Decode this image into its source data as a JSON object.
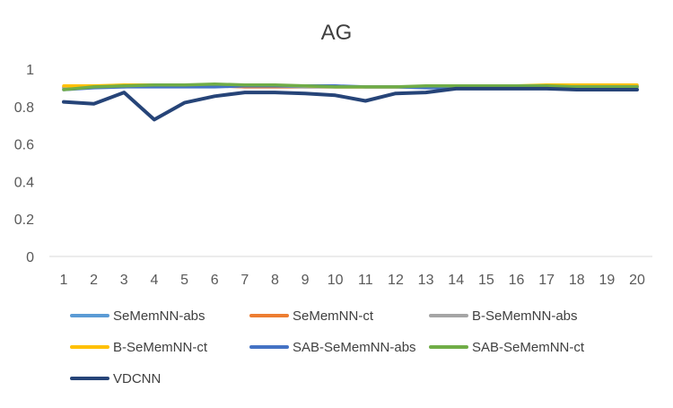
{
  "chart_data": {
    "type": "line",
    "title": "AG",
    "xlabel": "",
    "ylabel": "",
    "categories": [
      "1",
      "2",
      "3",
      "4",
      "5",
      "6",
      "7",
      "8",
      "9",
      "10",
      "11",
      "12",
      "13",
      "14",
      "15",
      "16",
      "17",
      "18",
      "19",
      "20"
    ],
    "ylim": [
      0,
      1
    ],
    "yticks": [
      "0",
      "0.2",
      "0.4",
      "0.6",
      "0.8",
      "1"
    ],
    "grid": false,
    "legend_position": "bottom",
    "series": [
      {
        "name": "SeMemNN-abs",
        "color": "#5B9BD5",
        "values": [
          0.9,
          0.905,
          0.905,
          0.91,
          0.91,
          0.91,
          0.905,
          0.905,
          0.905,
          0.905,
          0.905,
          0.905,
          0.905,
          0.905,
          0.91,
          0.91,
          0.91,
          0.905,
          0.905,
          0.905
        ]
      },
      {
        "name": "SeMemNN-ct",
        "color": "#ED7D31",
        "values": [
          0.905,
          0.905,
          0.91,
          0.91,
          0.91,
          0.91,
          0.905,
          0.905,
          0.905,
          0.905,
          0.905,
          0.905,
          0.905,
          0.91,
          0.91,
          0.91,
          0.91,
          0.905,
          0.91,
          0.91
        ]
      },
      {
        "name": "B-SeMemNN-abs",
        "color": "#A5A5A5",
        "values": [
          0.9,
          0.905,
          0.91,
          0.91,
          0.91,
          0.91,
          0.91,
          0.91,
          0.905,
          0.905,
          0.905,
          0.905,
          0.905,
          0.91,
          0.91,
          0.91,
          0.91,
          0.91,
          0.91,
          0.91
        ]
      },
      {
        "name": "B-SeMemNN-ct",
        "color": "#FFC000",
        "values": [
          0.91,
          0.91,
          0.915,
          0.915,
          0.915,
          0.915,
          0.91,
          0.91,
          0.91,
          0.905,
          0.905,
          0.905,
          0.905,
          0.91,
          0.91,
          0.91,
          0.915,
          0.915,
          0.915,
          0.915
        ]
      },
      {
        "name": "SAB-SeMemNN-abs",
        "color": "#4472C4",
        "values": [
          0.89,
          0.9,
          0.905,
          0.905,
          0.905,
          0.905,
          0.91,
          0.91,
          0.91,
          0.91,
          0.905,
          0.905,
          0.9,
          0.9,
          0.905,
          0.905,
          0.905,
          0.905,
          0.905,
          0.905
        ]
      },
      {
        "name": "SAB-SeMemNN-ct",
        "color": "#70AD47",
        "values": [
          0.89,
          0.905,
          0.91,
          0.915,
          0.915,
          0.92,
          0.915,
          0.915,
          0.91,
          0.905,
          0.905,
          0.905,
          0.91,
          0.91,
          0.91,
          0.91,
          0.91,
          0.905,
          0.905,
          0.905
        ]
      },
      {
        "name": "VDCNN",
        "color": "#264478",
        "values": [
          0.825,
          0.815,
          0.875,
          0.73,
          0.82,
          0.855,
          0.875,
          0.875,
          0.87,
          0.86,
          0.83,
          0.87,
          0.875,
          0.895,
          0.895,
          0.895,
          0.895,
          0.89,
          0.89,
          0.89
        ]
      }
    ]
  }
}
